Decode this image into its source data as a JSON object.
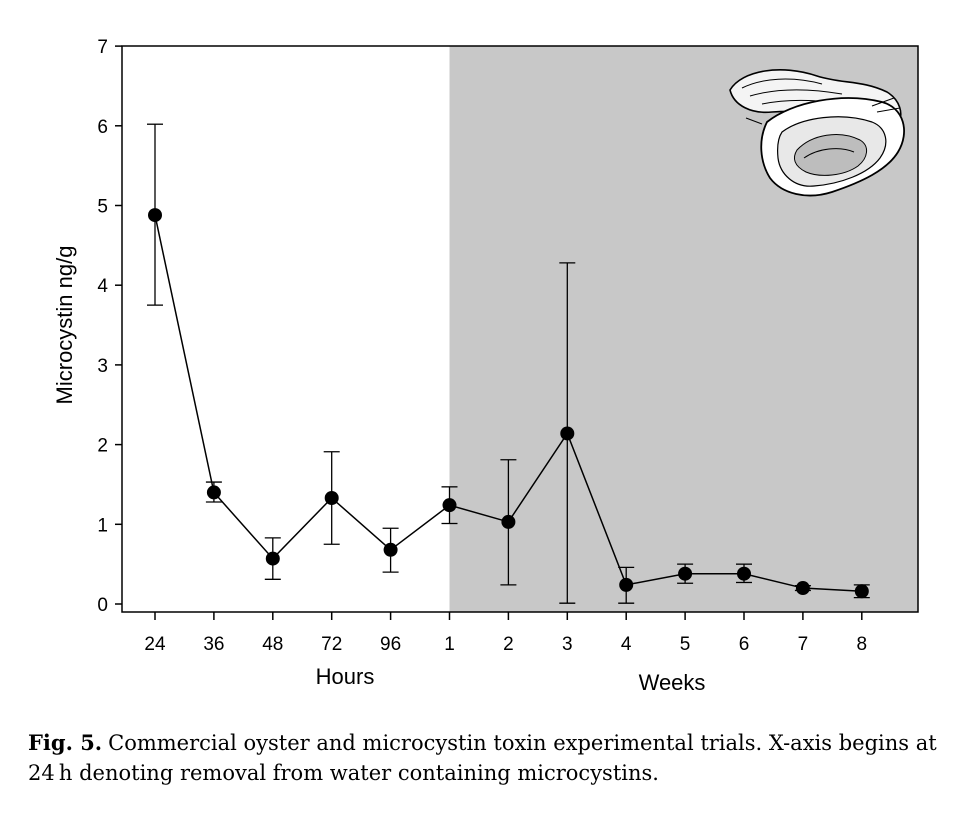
{
  "chart_data": {
    "type": "line",
    "categories": [
      "24",
      "36",
      "48",
      "72",
      "96",
      "1",
      "2",
      "3",
      "4",
      "5",
      "6",
      "7",
      "8"
    ],
    "series": [
      {
        "values": [
          4.88,
          1.4,
          0.57,
          1.33,
          0.68,
          1.24,
          1.03,
          2.14,
          0.24,
          0.38,
          0.38,
          0.2,
          0.16
        ],
        "error_low": [
          3.75,
          1.28,
          0.31,
          0.75,
          0.4,
          1.01,
          0.24,
          0.01,
          0.01,
          0.26,
          0.27,
          0.17,
          0.08
        ],
        "error_high": [
          6.02,
          1.53,
          0.83,
          1.91,
          0.95,
          1.47,
          1.81,
          4.28,
          0.46,
          0.5,
          0.5,
          0.23,
          0.24
        ]
      }
    ],
    "ylabel": "Microcystin ng/g",
    "xlabel_hours": "Hours",
    "xlabel_weeks": "Weeks",
    "ylim": [
      0,
      7
    ],
    "yticks": [
      0,
      1,
      2,
      3,
      4,
      5,
      6,
      7
    ],
    "shaded_region_start_category": "1",
    "shade_color": "#c8c8c8",
    "grid": false
  },
  "caption": {
    "label": "Fig. 5.",
    "text": "Commercial oyster and microcystin toxin experimental trials. X-axis begins at 24 h denoting removal from water containing microcystins."
  },
  "illustration": {
    "icon": "oyster-illustration"
  }
}
